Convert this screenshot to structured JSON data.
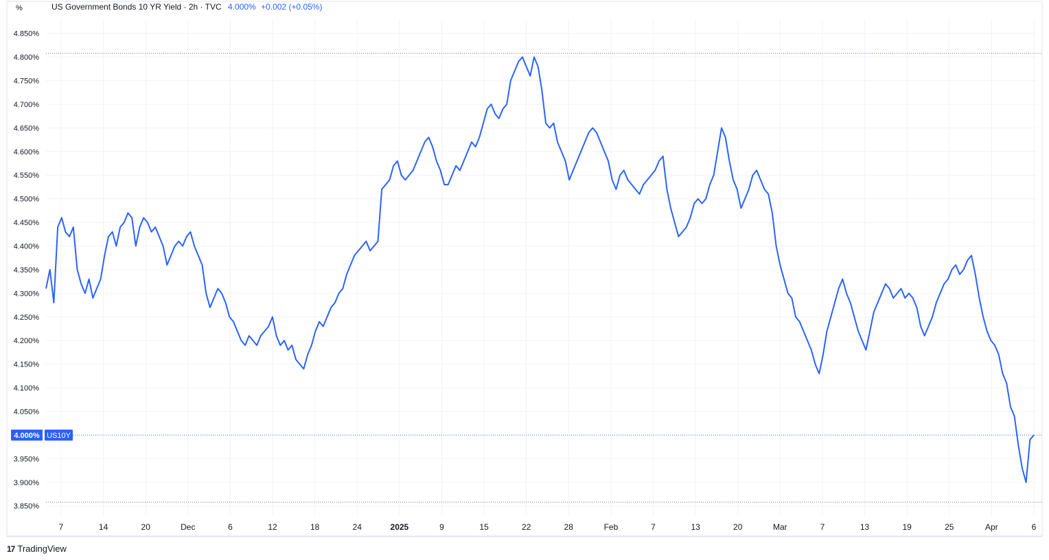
{
  "header": {
    "title": "US Government Bonds 10 YR Yield · 2h · TVC",
    "last_value": "4.000%",
    "change": "+0.002 (+0.05%)"
  },
  "unit_label": "%",
  "brand": {
    "logo": "17",
    "name": "TradingView"
  },
  "price_tag": {
    "value": "4.000%",
    "symbol": "US10Y"
  },
  "colors": {
    "line": "#2962ff",
    "grid": "#f0f3fa",
    "text": "#131722",
    "dotted": "#6a7082"
  },
  "chart_data": {
    "type": "line",
    "series": [
      {
        "values": [
          4.31,
          4.35,
          4.28,
          4.44,
          4.46,
          4.43,
          4.42,
          4.44,
          4.35,
          4.32,
          4.3,
          4.33,
          4.29,
          4.31,
          4.33,
          4.38,
          4.42,
          4.43,
          4.4,
          4.44,
          4.45,
          4.47,
          4.46,
          4.4,
          4.44,
          4.46,
          4.45,
          4.43,
          4.44,
          4.42,
          4.4,
          4.36,
          4.38,
          4.4,
          4.41,
          4.4,
          4.42,
          4.43,
          4.4,
          4.38,
          4.36,
          4.3,
          4.27,
          4.29,
          4.31,
          4.3,
          4.28,
          4.25,
          4.24,
          4.22,
          4.2,
          4.19,
          4.21,
          4.2,
          4.19,
          4.21,
          4.22,
          4.23,
          4.25,
          4.21,
          4.19,
          4.2,
          4.18,
          4.19,
          4.16,
          4.15,
          4.14,
          4.17,
          4.19,
          4.22,
          4.24,
          4.23,
          4.25,
          4.27,
          4.28,
          4.3,
          4.31,
          4.34,
          4.36,
          4.38,
          4.39,
          4.4,
          4.41,
          4.39,
          4.4,
          4.41,
          4.52,
          4.53,
          4.54,
          4.57,
          4.58,
          4.55,
          4.54,
          4.55,
          4.56,
          4.58,
          4.6,
          4.62,
          4.63,
          4.61,
          4.58,
          4.56,
          4.53,
          4.53,
          4.55,
          4.57,
          4.56,
          4.58,
          4.6,
          4.62,
          4.61,
          4.63,
          4.66,
          4.69,
          4.7,
          4.68,
          4.67,
          4.69,
          4.7,
          4.75,
          4.77,
          4.79,
          4.8,
          4.78,
          4.76,
          4.8,
          4.78,
          4.73,
          4.66,
          4.65,
          4.66,
          4.62,
          4.6,
          4.58,
          4.54,
          4.56,
          4.58,
          4.6,
          4.62,
          4.64,
          4.65,
          4.64,
          4.62,
          4.6,
          4.58,
          4.54,
          4.52,
          4.55,
          4.56,
          4.54,
          4.53,
          4.52,
          4.51,
          4.53,
          4.54,
          4.55,
          4.56,
          4.58,
          4.59,
          4.52,
          4.48,
          4.45,
          4.42,
          4.43,
          4.44,
          4.46,
          4.49,
          4.5,
          4.49,
          4.5,
          4.53,
          4.55,
          4.6,
          4.65,
          4.63,
          4.58,
          4.54,
          4.52,
          4.48,
          4.5,
          4.52,
          4.55,
          4.56,
          4.54,
          4.52,
          4.51,
          4.47,
          4.4,
          4.36,
          4.33,
          4.3,
          4.29,
          4.25,
          4.24,
          4.22,
          4.2,
          4.18,
          4.15,
          4.13,
          4.17,
          4.22,
          4.25,
          4.28,
          4.31,
          4.33,
          4.3,
          4.28,
          4.25,
          4.22,
          4.2,
          4.18,
          4.22,
          4.26,
          4.28,
          4.3,
          4.32,
          4.31,
          4.29,
          4.3,
          4.31,
          4.29,
          4.3,
          4.29,
          4.27,
          4.23,
          4.21,
          4.23,
          4.25,
          4.28,
          4.3,
          4.32,
          4.33,
          4.35,
          4.36,
          4.34,
          4.35,
          4.37,
          4.38,
          4.34,
          4.29,
          4.25,
          4.22,
          4.2,
          4.19,
          4.17,
          4.13,
          4.11,
          4.06,
          4.04,
          3.98,
          3.93,
          3.9,
          3.99,
          4.0
        ]
      }
    ],
    "x_ticks": [
      "7",
      "14",
      "20",
      "Dec",
      "6",
      "12",
      "18",
      "24",
      "2025",
      "9",
      "15",
      "22",
      "28",
      "Feb",
      "7",
      "13",
      "20",
      "Mar",
      "7",
      "13",
      "19",
      "25",
      "Apr",
      "6"
    ],
    "y_ticks": [
      "4.850%",
      "4.800%",
      "4.750%",
      "4.700%",
      "4.650%",
      "4.600%",
      "4.550%",
      "4.500%",
      "4.450%",
      "4.400%",
      "4.350%",
      "4.300%",
      "4.250%",
      "4.200%",
      "4.150%",
      "4.100%",
      "4.050%",
      "3.950%",
      "3.900%",
      "3.850%"
    ],
    "ylim": [
      3.83,
      4.88
    ],
    "high_line": 4.808,
    "low_line": 3.858,
    "grid": true
  }
}
